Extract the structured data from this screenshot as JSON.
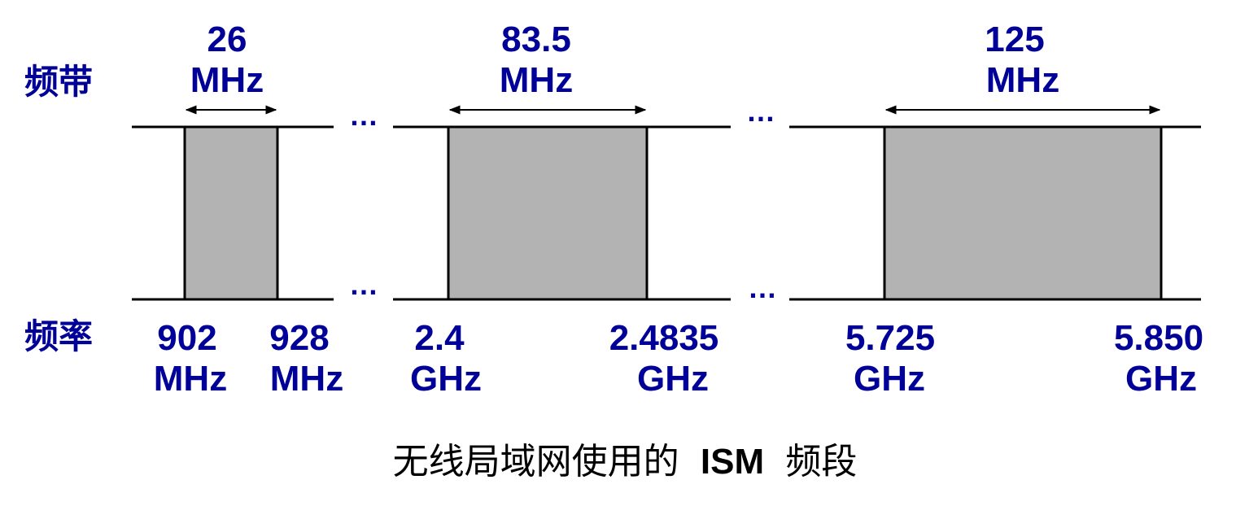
{
  "row_labels": {
    "band": "频带",
    "frequency": "频率"
  },
  "ellipsis": "…",
  "bands": [
    {
      "width_value": "26",
      "width_unit": "MHz",
      "low_value": "902",
      "low_unit": "MHz",
      "high_value": "928",
      "high_unit": "MHz"
    },
    {
      "width_value": "83.5",
      "width_unit": "MHz",
      "low_value": "2.4",
      "low_unit": "GHz",
      "high_value": "2.4835",
      "high_unit": "GHz"
    },
    {
      "width_value": "125",
      "width_unit": "MHz",
      "low_value": "5.725",
      "low_unit": "GHz",
      "high_value": "5.850",
      "high_unit": "GHz"
    }
  ],
  "caption": {
    "part1": "无线局域网使用的",
    "part2": "ISM",
    "part3": "频段"
  },
  "colors": {
    "label_blue": "#000099",
    "band_fill": "#b3b3b3",
    "line": "#000000"
  }
}
